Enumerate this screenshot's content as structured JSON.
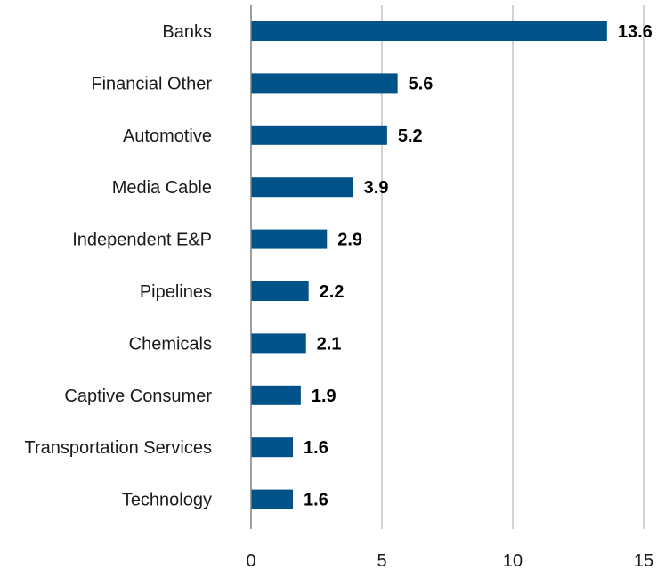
{
  "chart_data": {
    "type": "bar",
    "orientation": "horizontal",
    "title": "",
    "xlabel": "",
    "ylabel": "",
    "categories": [
      "Banks",
      "Financial Other",
      "Automotive",
      "Media Cable",
      "Independent E&P",
      "Pipelines",
      "Chemicals",
      "Captive Consumer",
      "Transportation Services",
      "Technology"
    ],
    "values": [
      13.6,
      5.6,
      5.2,
      3.9,
      2.9,
      2.2,
      2.1,
      1.9,
      1.6,
      1.6
    ],
    "value_labels": [
      "13.6",
      "5.6",
      "5.2",
      "3.9",
      "2.9",
      "2.2",
      "2.1",
      "1.9",
      "1.6",
      "1.6"
    ],
    "xlim": [
      0,
      15
    ],
    "xticks": [
      0,
      5,
      10,
      15
    ],
    "xtick_labels": [
      "0",
      "5",
      "10",
      "15"
    ],
    "grid": "vertical",
    "legend": "none",
    "bar_color": "#005288"
  }
}
